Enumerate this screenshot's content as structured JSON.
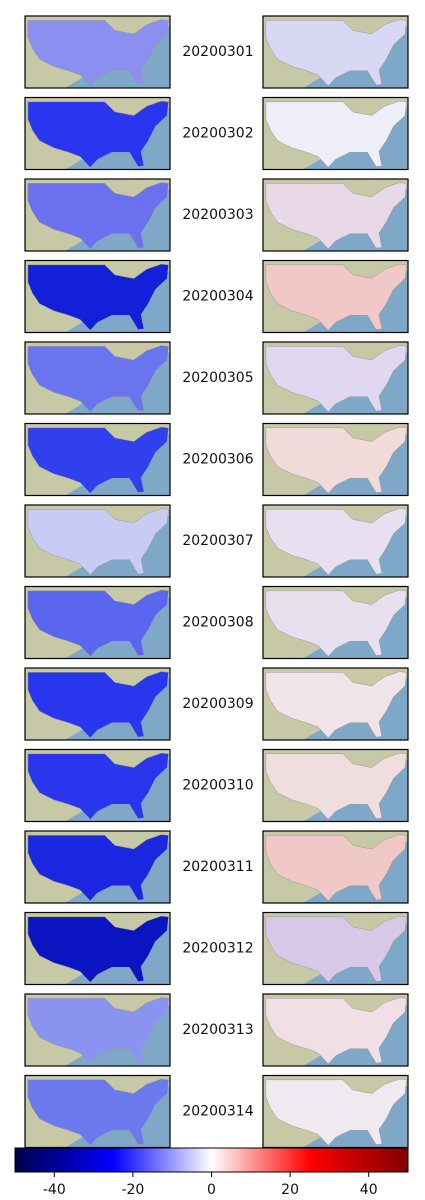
{
  "chart_data": {
    "type": "map-grid",
    "panels": [
      {
        "date": "20200301",
        "left_color": "#8a8ff0",
        "right_color": "#d8d8f5"
      },
      {
        "date": "20200302",
        "left_color": "#2a35f0",
        "right_color": "#eeeef8"
      },
      {
        "date": "20200303",
        "left_color": "#6a70ee",
        "right_color": "#e8d8e8"
      },
      {
        "date": "20200304",
        "left_color": "#1420d8",
        "right_color": "#f0c8c8"
      },
      {
        "date": "20200305",
        "left_color": "#6a74ee",
        "right_color": "#e0d8f0"
      },
      {
        "date": "20200306",
        "left_color": "#3040ee",
        "right_color": "#f0dada"
      },
      {
        "date": "20200307",
        "left_color": "#c8ccf5",
        "right_color": "#e8e0f0"
      },
      {
        "date": "20200308",
        "left_color": "#5a66ee",
        "right_color": "#e8e0ee"
      },
      {
        "date": "20200309",
        "left_color": "#2836ee",
        "right_color": "#f0e4e8"
      },
      {
        "date": "20200310",
        "left_color": "#2a36ee",
        "right_color": "#f0dede"
      },
      {
        "date": "20200311",
        "left_color": "#1a26e0",
        "right_color": "#f0c8c8"
      },
      {
        "date": "20200312",
        "left_color": "#0a14c0",
        "right_color": "#d8c8e8"
      },
      {
        "date": "20200313",
        "left_color": "#8a94f0",
        "right_color": "#f0e0e6"
      },
      {
        "date": "20200314",
        "left_color": "#6c78ee",
        "right_color": "#eeeaf0"
      }
    ],
    "colorbar": {
      "xlim": [
        -50,
        50
      ],
      "xticks": [
        -40,
        -20,
        0,
        20,
        40
      ]
    }
  }
}
